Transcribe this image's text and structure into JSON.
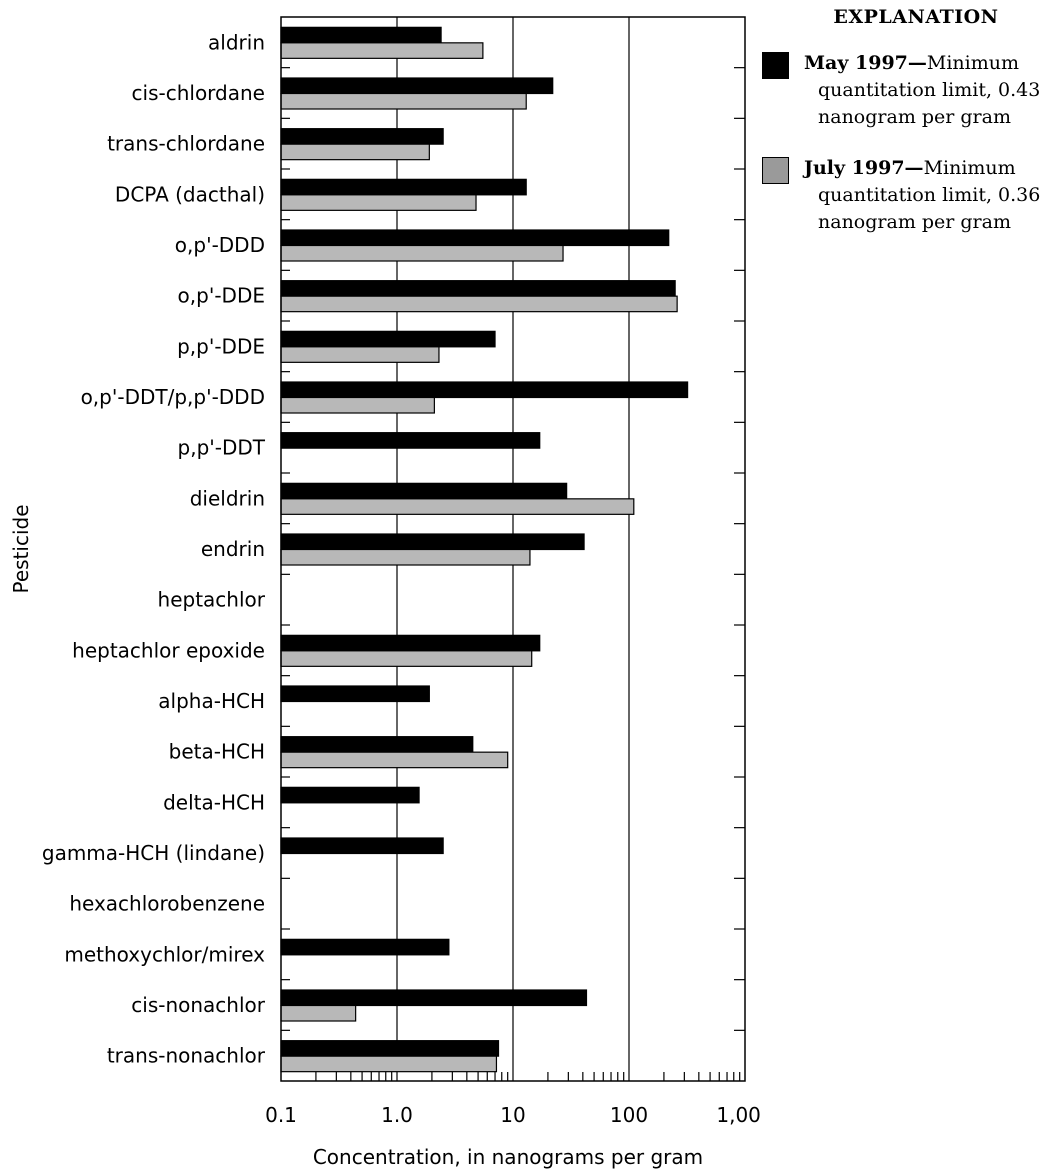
{
  "chart_data": {
    "type": "bar",
    "orientation": "horizontal",
    "xscale": "log",
    "xlim": [
      0.1,
      1000
    ],
    "xticks": [
      "0.1",
      "1.0",
      "10",
      "100",
      "1,000"
    ],
    "xlabel": "Concentration, in nanograms per gram",
    "ylabel": "Pesticide",
    "grid": "vertical lines at 1.0, 10, 100",
    "categories": [
      "aldrin",
      "cis-chlordane",
      "trans-chlordane",
      "DCPA (dacthal)",
      "o,p'-DDD",
      "o,p'-DDE",
      "p,p'-DDE",
      "o,p'-DDT/p,p'-DDD",
      "p,p'-DDT",
      "dieldrin",
      "endrin",
      "heptachlor",
      "heptachlor epoxide",
      "alpha-HCH",
      "beta-HCH",
      "delta-HCH",
      "gamma-HCH (lindane)",
      "hexachlorobenzene",
      "methoxychlor/mirex",
      "cis-nonachlor",
      "trans-nonachlor"
    ],
    "series": [
      {
        "name": "May 1997",
        "color": "#000000",
        "values": [
          2.4,
          22,
          2.5,
          13,
          220,
          250,
          7,
          320,
          17,
          29,
          41,
          null,
          17,
          1.9,
          4.5,
          1.55,
          2.5,
          null,
          2.8,
          43,
          7.5
        ]
      },
      {
        "name": "July 1997",
        "color": "#b8b8b8",
        "values": [
          5.5,
          13,
          1.9,
          4.8,
          27,
          260,
          2.3,
          2.1,
          null,
          110,
          14,
          null,
          14.5,
          null,
          9,
          null,
          null,
          null,
          null,
          0.44,
          7.2
        ]
      }
    ],
    "legend_position": "top-right"
  },
  "legend": {
    "title": "EXPLANATION",
    "items": [
      {
        "head": "May 1997—",
        "first": "Minimum",
        "rest": "quantitation limit, 0.43 nanogram per gram",
        "color": "#000000"
      },
      {
        "head": "July 1997—",
        "first": "Minimum",
        "rest": "quantitation limit, 0.36 nanogram per gram",
        "color": "#9a9a9a"
      }
    ]
  }
}
